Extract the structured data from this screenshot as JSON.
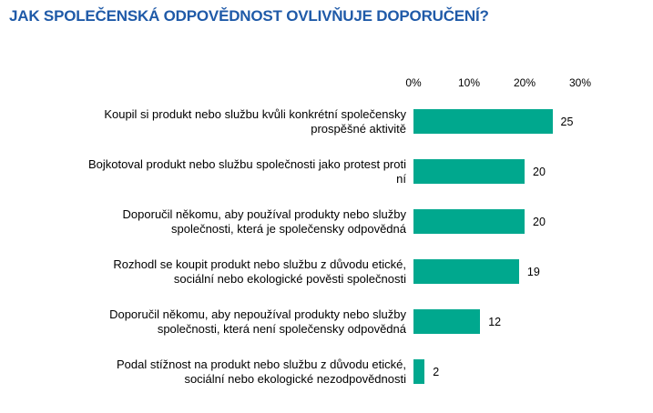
{
  "title": "JAK SPOLEČENSKÁ ODPOVĚDNOST OVLIVŇUJE DOPORUČENÍ?",
  "colors": {
    "title": "#1f5aa8",
    "bar": "#00a88e",
    "text": "#000000",
    "background": "#ffffff"
  },
  "chart_data": {
    "type": "bar",
    "orientation": "horizontal",
    "title": "JAK SPOLEČENSKÁ ODPOVĚDNOST OVLIVŇUJE DOPORUČENÍ?",
    "xlabel": "",
    "ylabel": "",
    "xlim": [
      0,
      30
    ],
    "axis_position": "top",
    "grid": false,
    "legend": false,
    "ticks": [
      {
        "label": "0%",
        "value": 0
      },
      {
        "label": "10%",
        "value": 10
      },
      {
        "label": "20%",
        "value": 20
      },
      {
        "label": "30%",
        "value": 30
      }
    ],
    "categories": [
      "Koupil si produkt nebo službu kvůli konkrétní společensky prospěšné aktivitě",
      "Bojkotoval produkt nebo službu společnosti jako protest proti ní",
      "Doporučil někomu, aby používal produkty nebo služby společnosti, která je společensky odpovědná",
      "Rozhodl se koupit produkt nebo službu z důvodu etické, sociální nebo ekologické pověsti společnosti",
      "Doporučil někomu, aby nepoužíval produkty nebo služby společnosti, která není společensky odpovědná",
      "Podal stížnost na produkt nebo službu z důvodu etické, sociální nebo ekologické nezodpovědnosti"
    ],
    "category_lines": [
      [
        "Koupil si produkt nebo službu kvůli konkrétní společensky",
        "prospěšné aktivitě"
      ],
      [
        "Bojkotoval produkt nebo službu společnosti jako protest proti",
        "ní"
      ],
      [
        "Doporučil někomu, aby používal produkty nebo služby",
        "společnosti, která je společensky odpovědná"
      ],
      [
        "Rozhodl se koupit produkt nebo službu z důvodu etické,",
        "sociální nebo ekologické pověsti společnosti"
      ],
      [
        "Doporučil někomu, aby nepoužíval produkty nebo služby",
        "společnosti, která není společensky odpovědná"
      ],
      [
        "Podal stížnost na produkt nebo službu z důvodu etické,",
        "sociální nebo ekologické nezodpovědnosti"
      ]
    ],
    "values": [
      25,
      20,
      20,
      19,
      12,
      2
    ],
    "value_labels": [
      "25",
      "20",
      "20",
      "19",
      "12",
      "2"
    ]
  }
}
